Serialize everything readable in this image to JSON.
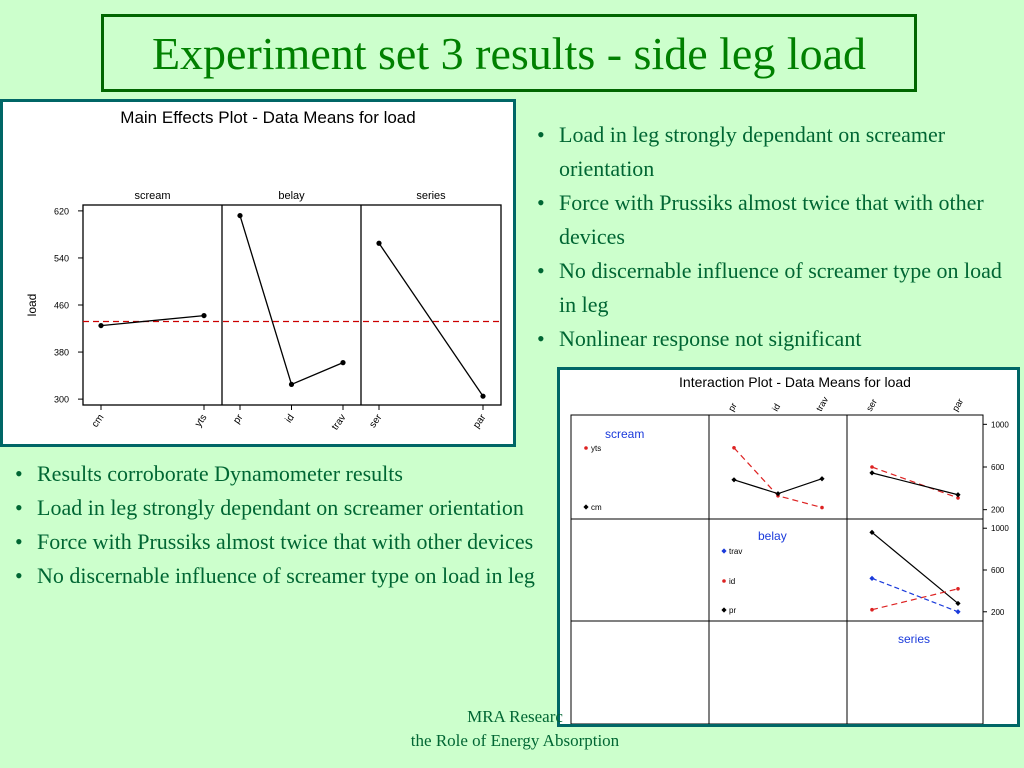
{
  "slide": {
    "title": "Experiment set 3 results - side leg load",
    "right_bullets": [
      "Load in leg strongly dependant on screamer orientation",
      "Force with Prussiks almost twice that with other devices",
      "No discernable influence of screamer type on load in leg",
      "Nonlinear response not significant"
    ],
    "left_bullets": [
      "Results corroborate Dynamometer results",
      "Load in leg strongly dependant on screamer orientation",
      "Force with Prussiks almost twice that with other devices",
      "No discernable influence of screamer type on load in leg"
    ],
    "footer_line1": "MRA Researc",
    "footer_line2": "the Role of Energy Absorption"
  },
  "colors": {
    "background": "#ccffcc",
    "title_text": "#008000",
    "body_text": "#006633",
    "frame_border": "#006666",
    "mean_line": "#cc0000",
    "series_red": "#dd2222",
    "series_blue": "#1a3adb",
    "series_black": "#000000",
    "panel_label": "#1a3adb"
  },
  "chart_data": [
    {
      "type": "line",
      "title": "Main Effects Plot - Data Means for load",
      "ylabel": "load",
      "ylim": [
        290,
        630
      ],
      "yticks": [
        "300",
        "380",
        "460",
        "540",
        "620"
      ],
      "overall_mean": 432,
      "panels": [
        {
          "factor": "scream",
          "levels": [
            "cm",
            "yts"
          ],
          "values": [
            425,
            442
          ]
        },
        {
          "factor": "belay",
          "levels": [
            "pr",
            "id",
            "trav"
          ],
          "values": [
            612,
            325,
            362
          ]
        },
        {
          "factor": "series",
          "levels": [
            "ser",
            "par"
          ],
          "values": [
            565,
            305
          ]
        }
      ]
    },
    {
      "type": "line",
      "title": "Interaction Plot - Data Means for load",
      "ylim": [
        150,
        1050
      ],
      "yticks": [
        "200",
        "600",
        "1000"
      ],
      "factor_labels": [
        "scream",
        "belay",
        "series"
      ],
      "factor_levels": {
        "scream": [
          "cm",
          "yts"
        ],
        "belay": [
          "pr",
          "id",
          "trav"
        ],
        "series": [
          "ser",
          "par"
        ]
      },
      "top_axis_labels": [
        "pr",
        "id",
        "trav",
        "ser",
        "par"
      ],
      "legends": {
        "scream": [
          "yts",
          "cm"
        ],
        "belay": [
          "trav",
          "id",
          "pr"
        ]
      },
      "cells": [
        {
          "row": "scream",
          "col": "belay",
          "series": [
            {
              "level": "yts",
              "values": [
                780,
                330,
                220
              ]
            },
            {
              "level": "cm",
              "values": [
                480,
                350,
                490
              ]
            }
          ]
        },
        {
          "row": "scream",
          "col": "series",
          "series": [
            {
              "level": "yts",
              "values": [
                600,
                310
              ]
            },
            {
              "level": "cm",
              "values": [
                545,
                340
              ]
            }
          ]
        },
        {
          "row": "belay",
          "col": "series",
          "series": [
            {
              "level": "pr",
              "values": [
                960,
                280
              ]
            },
            {
              "level": "id",
              "values": [
                220,
                420
              ]
            },
            {
              "level": "trav",
              "values": [
                520,
                200
              ]
            }
          ]
        }
      ]
    }
  ]
}
